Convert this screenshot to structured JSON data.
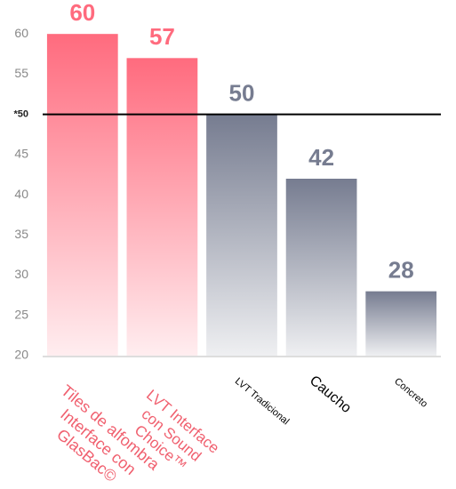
{
  "chart_data": {
    "type": "bar",
    "categories": [
      "Tiles de alfombra Interface con GlasBac©",
      "LVT Interface con Sound Choice™",
      "LVT Tradicional",
      "Caucho",
      "Concreto"
    ],
    "values": [
      60,
      57,
      50,
      42,
      28
    ],
    "colors": [
      "#ff6b7e",
      "#ff6b7e",
      "#767c90",
      "#767c90",
      "#767c90"
    ],
    "category_colors": [
      "#f0606f",
      "#f0606f",
      "#000000",
      "#000000",
      "#000000"
    ],
    "ylim": [
      20,
      64
    ],
    "yticks": [
      20,
      25,
      30,
      35,
      40,
      45,
      {
        "value": 50,
        "label": "*50"
      },
      55,
      60
    ],
    "reference_line": 50
  }
}
